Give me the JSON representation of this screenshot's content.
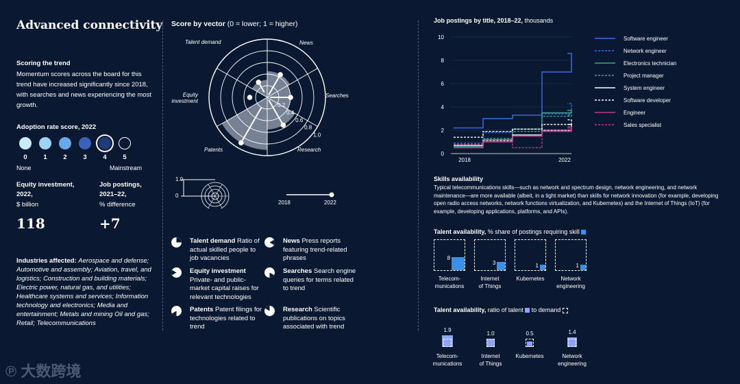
{
  "title": "Advanced connectivity",
  "scoring": {
    "heading": "Scoring the trend",
    "body": "Momentum scores across the board for this trend have increased significantly since 2018, with searches and news experiencing the most growth."
  },
  "adoption": {
    "heading": "Adoption rate score, 2022",
    "levels": [
      "0",
      "1",
      "2",
      "3",
      "4",
      "5"
    ],
    "selected": 4,
    "none_label": "None",
    "mainstream_label": "Mainstream",
    "colors": [
      "#c9ecfb",
      "#9ed2f4",
      "#68a9ea",
      "#3a62b8",
      "#203b78",
      "#0a1931"
    ]
  },
  "equity": {
    "label_line1": "Equity investment,",
    "label_line2": "2022,",
    "unit": "$ billion",
    "value": "118"
  },
  "postings": {
    "label_line1": "Job postings,",
    "label_line2": "2021–22,",
    "unit": "% difference",
    "value": "+7"
  },
  "industries": {
    "label": "Industries affected:",
    "text": "Aerospace and defense; Automotive and assembly; Aviation, travel, and logistics; Construction and building materials; Electric power, natural gas, and utilities; Healthcare systems and services; Information technology and electronics; Media and entertainment; Metals and mining Oil and gas; Retail; Telecommunications"
  },
  "score_by_vector": {
    "heading_bold": "Score by vector",
    "heading_rest": "(0 = lower; 1 = higher)",
    "axis_labels": {
      "talent_demand": "Talent demand",
      "news": "News",
      "searches": "Searches",
      "research": "Research",
      "patents": "Patents",
      "equity_investment_1": "Equity",
      "equity_investment_2": "investment"
    },
    "ring_labels": [
      "0.2",
      "0.4",
      "0.6",
      "0.8",
      "1.0"
    ],
    "key": {
      "size_top": "1.0",
      "size_bottom": "0",
      "year_start": "2018",
      "year_end": "2022"
    }
  },
  "legend": [
    {
      "name": "Talent demand",
      "desc": "Ratio of actual skilled people to job vacancies"
    },
    {
      "name": "News",
      "desc": "Press reports featuring trend-related phrases"
    },
    {
      "name": "Equity investment",
      "desc": "Private- and public-market capital raises for relevant technologies"
    },
    {
      "name": "Searches",
      "desc": "Search engine queries for terms related to trend"
    },
    {
      "name": "Patents",
      "desc": "Patent filings for technologies related to trend"
    },
    {
      "name": "Research",
      "desc": "Scientific publications on topics associated with trend"
    }
  ],
  "jobs": {
    "heading_bold": "Job postings by title, 2018–22,",
    "heading_rest": "thousands"
  },
  "skills": {
    "heading": "Skills availability",
    "body": "Typical telecommunications skills—such as network and spectrum design, network engineering, and network maintenance—are more available (albeit, in a tight market) than skills for network innovation (for example, developing open radio access networks, network functions virtualization, and Kubernetes) and the Internet of Things (IoT) (for example, developing applications, platforms, and APIs).",
    "share_heading_bold": "Talent availability,",
    "share_heading_rest": "% share of postings requiring skill",
    "ratio_heading_bold": "Talent availability,",
    "ratio_heading_rest1": "ratio of talent",
    "ratio_heading_rest2": "to demand",
    "share_items": [
      {
        "label1": "Telecom-",
        "label2": "munications",
        "value": "8"
      },
      {
        "label1": "Internet",
        "label2": "of Things",
        "value": "3"
      },
      {
        "label1": "Kubernetes",
        "label2": "",
        "value": "1"
      },
      {
        "label1": "Network",
        "label2": "engineering",
        "value": "1"
      }
    ],
    "ratio_items": [
      {
        "label1": "Telecom-",
        "label2": "munications",
        "value": "1.9"
      },
      {
        "label1": "Internet",
        "label2": "of Things",
        "value": "1.0"
      },
      {
        "label1": "Kubernetes",
        "label2": "",
        "value": "0.5"
      },
      {
        "label1": "Network",
        "label2": "engineering",
        "value": "1.4"
      }
    ]
  },
  "watermark": "大数跨境",
  "chart_data": [
    {
      "type": "radar",
      "id": "score_by_vector",
      "axes": [
        "News",
        "Searches",
        "Research",
        "Patents",
        "Equity investment",
        "Talent demand"
      ],
      "range": [
        0,
        1
      ],
      "ring_ticks": [
        0.2,
        0.4,
        0.6,
        0.8,
        1.0
      ],
      "series": [
        {
          "name": "2018",
          "values": [
            0.05,
            0.05,
            0.05,
            0.2,
            0.3,
            0.1
          ]
        },
        {
          "name": "2022",
          "values": [
            0.45,
            0.4,
            0.55,
            0.9,
            0.3,
            0.3
          ]
        }
      ],
      "colors": {
        "fill": "#8a95a6",
        "ring": "#ffffff",
        "marker": "#ffffff"
      }
    },
    {
      "type": "line",
      "id": "job_postings",
      "x": [
        2018,
        2019,
        2020,
        2021,
        2022
      ],
      "xticks": [
        "2018",
        "2022"
      ],
      "ylim": [
        0,
        10
      ],
      "yticks": [
        "0",
        "2",
        "4",
        "6",
        "8",
        "10"
      ],
      "series": [
        {
          "name": "Software engineer",
          "values": [
            2.2,
            3.0,
            3.3,
            7.0,
            8.6
          ],
          "color": "#3b6fe6",
          "dash": false
        },
        {
          "name": "Network engineer",
          "values": [
            0.9,
            1.8,
            2.1,
            3.4,
            4.3
          ],
          "color": "#3b6fe6",
          "dash": true
        },
        {
          "name": "Electronics technician",
          "values": [
            0.6,
            1.2,
            2.1,
            3.5,
            3.7
          ],
          "color": "#3fa58c",
          "dash": false
        },
        {
          "name": "Project manager",
          "values": [
            0.6,
            1.3,
            1.9,
            3.2,
            3.3
          ],
          "color": "#3fa58c",
          "dash": true
        },
        {
          "name": "System engineer",
          "values": [
            0.7,
            1.1,
            1.6,
            2.0,
            2.5
          ],
          "color": "#ffffff",
          "dash": false
        },
        {
          "name": "Software developer",
          "values": [
            1.4,
            1.9,
            2.1,
            2.5,
            2.9
          ],
          "color": "#ffffff",
          "dash": true
        },
        {
          "name": "Engineer",
          "values": [
            0.5,
            1.0,
            1.5,
            1.9,
            2.2
          ],
          "color": "#c03a8a",
          "dash": false
        },
        {
          "name": "Sales specialist",
          "values": [
            0.8,
            1.1,
            0.5,
            2.0,
            2.3
          ],
          "color": "#c03a8a",
          "dash": true
        }
      ]
    },
    {
      "type": "bar",
      "id": "talent_share",
      "categories": [
        "Telecommunications",
        "Internet of Things",
        "Kubernetes",
        "Network engineering"
      ],
      "values": [
        8,
        3,
        1,
        1
      ],
      "unit": "%"
    },
    {
      "type": "bar",
      "id": "talent_ratio",
      "categories": [
        "Telecommunications",
        "Internet of Things",
        "Kubernetes",
        "Network engineering"
      ],
      "values": [
        1.9,
        1.0,
        0.5,
        1.4
      ]
    }
  ]
}
